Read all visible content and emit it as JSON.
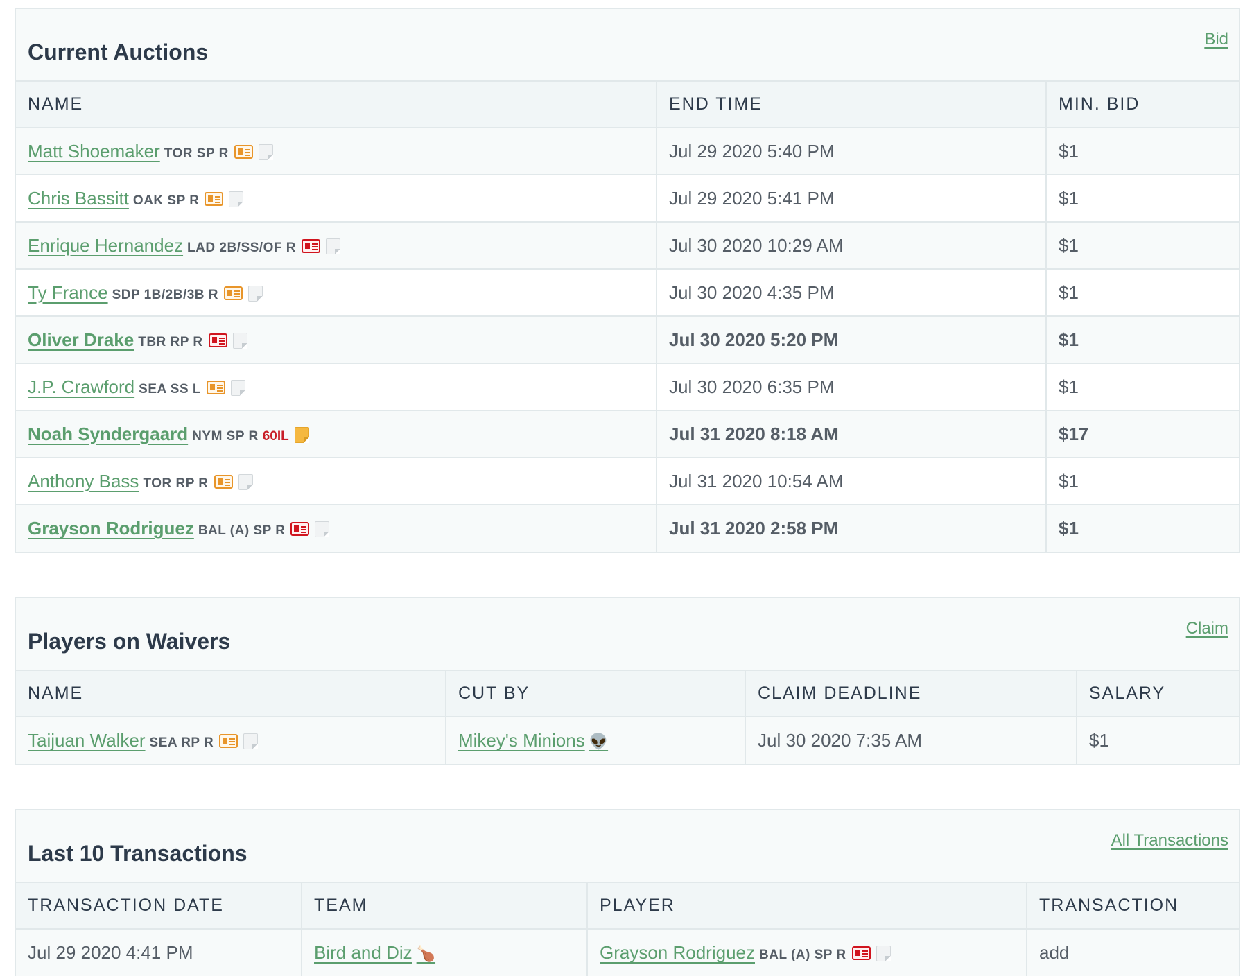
{
  "auctions": {
    "title": "Current Auctions",
    "action": "Bid",
    "columns": [
      "NAME",
      "END TIME",
      "MIN. BID"
    ],
    "rows": [
      {
        "name": "Matt Shoemaker",
        "meta": "TOR SP R",
        "end": "Jul 29 2020 5:40 PM",
        "bid": "$1"
      },
      {
        "name": "Chris Bassitt",
        "meta": "OAK SP R",
        "end": "Jul 29 2020 5:41 PM",
        "bid": "$1"
      },
      {
        "name": "Enrique Hernandez",
        "meta": "LAD 2B/SS/OF R",
        "end": "Jul 30 2020 10:29 AM",
        "bid": "$1"
      },
      {
        "name": "Ty France",
        "meta": "SDP 1B/2B/3B R",
        "end": "Jul 30 2020 4:35 PM",
        "bid": "$1"
      },
      {
        "name": "Oliver Drake",
        "meta": "TBR RP R",
        "end": "Jul 30 2020 5:20 PM",
        "bid": "$1"
      },
      {
        "name": "J.P. Crawford",
        "meta": "SEA SS L",
        "end": "Jul 30 2020 6:35 PM",
        "bid": "$1"
      },
      {
        "name": "Noah Syndergaard",
        "meta": "NYM SP R",
        "status": "60IL",
        "end": "Jul 31 2020 8:18 AM",
        "bid": "$17"
      },
      {
        "name": "Anthony Bass",
        "meta": "TOR RP R",
        "end": "Jul 31 2020 10:54 AM",
        "bid": "$1"
      },
      {
        "name": "Grayson Rodriguez",
        "meta": "BAL (A) SP R",
        "end": "Jul 31 2020 2:58 PM",
        "bid": "$1"
      }
    ]
  },
  "waivers": {
    "title": "Players on Waivers",
    "action": "Claim",
    "columns": [
      "NAME",
      "CUT BY",
      "CLAIM DEADLINE",
      "SALARY"
    ],
    "rows": [
      {
        "name": "Taijuan Walker",
        "meta": "SEA RP R",
        "cut_by": "Mikey's Minions",
        "cut_by_emoji": "👽",
        "deadline": "Jul 30 2020 7:35 AM",
        "salary": "$1"
      }
    ]
  },
  "transactions": {
    "title": "Last 10 Transactions",
    "action": "All Transactions",
    "columns": [
      "TRANSACTION DATE",
      "TEAM",
      "PLAYER",
      "TRANSACTION"
    ],
    "rows": [
      {
        "date": "Jul 29 2020 4:41 PM",
        "team": "Bird and Diz",
        "team_emoji": "🍗",
        "player": "Grayson Rodriguez",
        "meta": "BAL (A) SP R",
        "type": "add"
      }
    ]
  }
}
